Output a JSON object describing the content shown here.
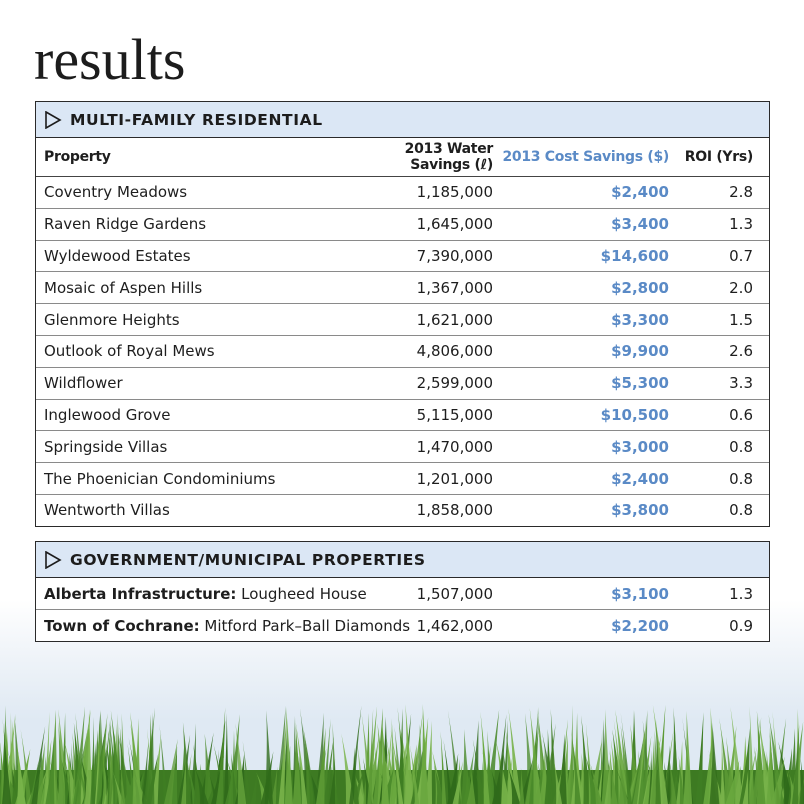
{
  "page_title": "results",
  "residential": {
    "heading": "MULTI-FAMILY RESIDENTIAL",
    "columns": {
      "property": "Property",
      "water": "2013 Water Savings (ℓ)",
      "cost": "2013 Cost Savings ($)",
      "roi": "ROI (Yrs)"
    },
    "rows": [
      {
        "property": "Coventry Meadows",
        "water": "1,185,000",
        "cost": "$2,400",
        "roi": "2.8"
      },
      {
        "property": "Raven Ridge Gardens",
        "water": "1,645,000",
        "cost": "$3,400",
        "roi": "1.3"
      },
      {
        "property": "Wyldewood Estates",
        "water": "7,390,000",
        "cost": "$14,600",
        "roi": "0.7"
      },
      {
        "property": "Mosaic of Aspen Hills",
        "water": "1,367,000",
        "cost": "$2,800",
        "roi": "2.0"
      },
      {
        "property": "Glenmore Heights",
        "water": "1,621,000",
        "cost": "$3,300",
        "roi": "1.5"
      },
      {
        "property": "Outlook of Royal Mews",
        "water": "4,806,000",
        "cost": "$9,900",
        "roi": "2.6"
      },
      {
        "property": "Wildflower",
        "water": "2,599,000",
        "cost": "$5,300",
        "roi": "3.3"
      },
      {
        "property": "Inglewood Grove",
        "water": "5,115,000",
        "cost": "$10,500",
        "roi": "0.6"
      },
      {
        "property": "Springside Villas",
        "water": "1,470,000",
        "cost": "$3,000",
        "roi": "0.8"
      },
      {
        "property": "The Phoenician Condominiums",
        "water": "1,201,000",
        "cost": "$2,400",
        "roi": "0.8"
      },
      {
        "property": " Wentworth Villas",
        "water": "1,858,000",
        "cost": "$3,800",
        "roi": "0.8"
      }
    ]
  },
  "government": {
    "heading": "GOVERNMENT/MUNICIPAL PROPERTIES",
    "rows": [
      {
        "owner": "Alberta Infrastructure:",
        "site": " Lougheed House",
        "water": "1,507,000",
        "cost": "$3,100",
        "roi": "1.3"
      },
      {
        "owner": "Town of Cochrane:",
        "site": " Mitford Park–Ball Diamonds",
        "water": "1,462,000",
        "cost": "$2,200",
        "roi": "0.9"
      }
    ]
  },
  "icons": {
    "section_marker": "triangle-right-outline-icon",
    "decoration": "grass-strip"
  },
  "colors": {
    "cost_blue": "#5a8ac6",
    "header_fill": "#dbe7f5",
    "grass_green": "#4a8a2a"
  }
}
